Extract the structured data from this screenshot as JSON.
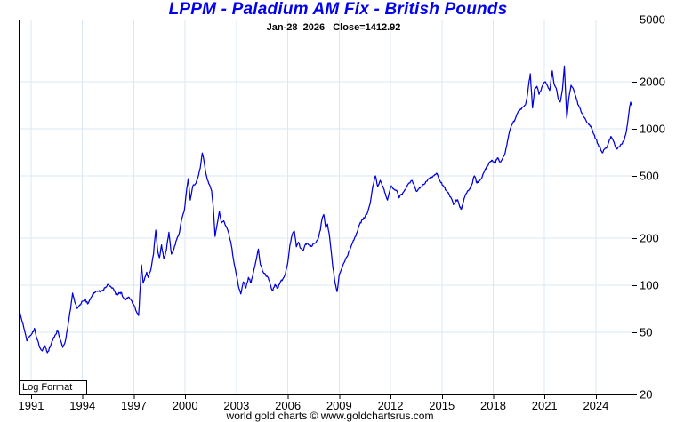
{
  "title": "LPPM - Paladium AM Fix - British Pounds",
  "subtitle": "Jan-28  2026   Close=1412.92",
  "corner_label": "Log Format",
  "footer_credit": "world gold charts © www.goldchartsrus.com",
  "colors": {
    "title": "#0101ef",
    "line": "#0000dd",
    "grid": "#d9e8f6",
    "axis": "#000000",
    "background": "#ffffff"
  },
  "chart_data": {
    "type": "line",
    "title": "LPPM - Paladium AM Fix - British Pounds",
    "y_scale": "log",
    "grid": true,
    "x_ticks": [
      1991,
      1994,
      1997,
      2000,
      2003,
      2006,
      2009,
      2012,
      2015,
      2018,
      2021,
      2024
    ],
    "y_ticks": [
      5000,
      2000,
      1000,
      500,
      200,
      100,
      50,
      20
    ],
    "xlim": [
      1990.27,
      2026.1
    ],
    "ylim": [
      20,
      5000
    ],
    "last_close": 1412.92,
    "last_close_date": "Jan-28 2026",
    "series": [
      {
        "name": "Paladium AM Fix (British Pounds)",
        "points": [
          [
            1990.27,
            72
          ],
          [
            1990.45,
            60
          ],
          [
            1990.6,
            52
          ],
          [
            1990.75,
            44
          ],
          [
            1990.9,
            47
          ],
          [
            1991.05,
            49
          ],
          [
            1991.2,
            53
          ],
          [
            1991.35,
            45
          ],
          [
            1991.5,
            40
          ],
          [
            1991.65,
            38
          ],
          [
            1991.8,
            41
          ],
          [
            1991.95,
            37
          ],
          [
            1992.1,
            40
          ],
          [
            1992.25,
            44
          ],
          [
            1992.4,
            48
          ],
          [
            1992.55,
            51
          ],
          [
            1992.7,
            45
          ],
          [
            1992.85,
            40
          ],
          [
            1993.0,
            44
          ],
          [
            1993.15,
            55
          ],
          [
            1993.3,
            70
          ],
          [
            1993.42,
            89
          ],
          [
            1993.55,
            78
          ],
          [
            1993.7,
            71
          ],
          [
            1993.85,
            75
          ],
          [
            1994.0,
            79
          ],
          [
            1994.15,
            82
          ],
          [
            1994.3,
            76
          ],
          [
            1994.45,
            81
          ],
          [
            1994.6,
            88
          ],
          [
            1994.75,
            90
          ],
          [
            1994.9,
            92
          ],
          [
            1995.05,
            91
          ],
          [
            1995.2,
            93
          ],
          [
            1995.35,
            97
          ],
          [
            1995.5,
            101
          ],
          [
            1995.65,
            98
          ],
          [
            1995.8,
            95
          ],
          [
            1995.95,
            87
          ],
          [
            1996.1,
            88
          ],
          [
            1996.25,
            90
          ],
          [
            1996.4,
            83
          ],
          [
            1996.55,
            81
          ],
          [
            1996.7,
            84
          ],
          [
            1996.85,
            80
          ],
          [
            1997.0,
            75
          ],
          [
            1997.15,
            68
          ],
          [
            1997.28,
            64
          ],
          [
            1997.38,
            100
          ],
          [
            1997.45,
            135
          ],
          [
            1997.55,
            103
          ],
          [
            1997.65,
            112
          ],
          [
            1997.75,
            121
          ],
          [
            1997.85,
            112
          ],
          [
            1998.0,
            126
          ],
          [
            1998.15,
            158
          ],
          [
            1998.28,
            225
          ],
          [
            1998.4,
            165
          ],
          [
            1998.5,
            150
          ],
          [
            1998.62,
            181
          ],
          [
            1998.75,
            148
          ],
          [
            1998.9,
            166
          ],
          [
            1999.05,
            218
          ],
          [
            1999.2,
            158
          ],
          [
            1999.35,
            172
          ],
          [
            1999.5,
            195
          ],
          [
            1999.65,
            214
          ],
          [
            1999.8,
            264
          ],
          [
            1999.95,
            300
          ],
          [
            2000.1,
            420
          ],
          [
            2000.18,
            480
          ],
          [
            2000.3,
            350
          ],
          [
            2000.45,
            430
          ],
          [
            2000.6,
            445
          ],
          [
            2000.75,
            490
          ],
          [
            2000.88,
            560
          ],
          [
            2001.0,
            700
          ],
          [
            2001.08,
            645
          ],
          [
            2001.18,
            545
          ],
          [
            2001.3,
            470
          ],
          [
            2001.42,
            440
          ],
          [
            2001.55,
            400
          ],
          [
            2001.65,
            310
          ],
          [
            2001.75,
            205
          ],
          [
            2001.88,
            248
          ],
          [
            2002.0,
            295
          ],
          [
            2002.12,
            250
          ],
          [
            2002.25,
            258
          ],
          [
            2002.4,
            238
          ],
          [
            2002.55,
            215
          ],
          [
            2002.7,
            180
          ],
          [
            2002.85,
            140
          ],
          [
            2003.0,
            115
          ],
          [
            2003.15,
            95
          ],
          [
            2003.25,
            88
          ],
          [
            2003.4,
            105
          ],
          [
            2003.55,
            96
          ],
          [
            2003.7,
            112
          ],
          [
            2003.85,
            104
          ],
          [
            2004.0,
            122
          ],
          [
            2004.15,
            145
          ],
          [
            2004.28,
            170
          ],
          [
            2004.4,
            135
          ],
          [
            2004.55,
            122
          ],
          [
            2004.7,
            116
          ],
          [
            2004.85,
            112
          ],
          [
            2005.0,
            99
          ],
          [
            2005.12,
            92
          ],
          [
            2005.25,
            101
          ],
          [
            2005.4,
            96
          ],
          [
            2005.55,
            104
          ],
          [
            2005.7,
            109
          ],
          [
            2005.85,
            117
          ],
          [
            2006.0,
            140
          ],
          [
            2006.12,
            180
          ],
          [
            2006.25,
            210
          ],
          [
            2006.38,
            222
          ],
          [
            2006.5,
            176
          ],
          [
            2006.62,
            188
          ],
          [
            2006.75,
            172
          ],
          [
            2006.88,
            166
          ],
          [
            2007.0,
            180
          ],
          [
            2007.15,
            186
          ],
          [
            2007.3,
            176
          ],
          [
            2007.45,
            181
          ],
          [
            2007.6,
            186
          ],
          [
            2007.75,
            196
          ],
          [
            2007.9,
            225
          ],
          [
            2008.0,
            266
          ],
          [
            2008.1,
            283
          ],
          [
            2008.22,
            232
          ],
          [
            2008.32,
            246
          ],
          [
            2008.45,
            200
          ],
          [
            2008.6,
            140
          ],
          [
            2008.75,
            105
          ],
          [
            2008.88,
            91
          ],
          [
            2009.0,
            117
          ],
          [
            2009.15,
            128
          ],
          [
            2009.3,
            140
          ],
          [
            2009.45,
            152
          ],
          [
            2009.6,
            166
          ],
          [
            2009.75,
            183
          ],
          [
            2009.9,
            200
          ],
          [
            2010.05,
            218
          ],
          [
            2010.2,
            246
          ],
          [
            2010.35,
            262
          ],
          [
            2010.5,
            272
          ],
          [
            2010.65,
            290
          ],
          [
            2010.8,
            330
          ],
          [
            2010.92,
            400
          ],
          [
            2011.05,
            470
          ],
          [
            2011.12,
            500
          ],
          [
            2011.25,
            428
          ],
          [
            2011.4,
            468
          ],
          [
            2011.55,
            430
          ],
          [
            2011.7,
            385
          ],
          [
            2011.82,
            350
          ],
          [
            2011.95,
            400
          ],
          [
            2012.05,
            432
          ],
          [
            2012.2,
            412
          ],
          [
            2012.35,
            405
          ],
          [
            2012.5,
            362
          ],
          [
            2012.65,
            382
          ],
          [
            2012.8,
            400
          ],
          [
            2012.95,
            425
          ],
          [
            2013.1,
            450
          ],
          [
            2013.25,
            468
          ],
          [
            2013.4,
            430
          ],
          [
            2013.5,
            400
          ],
          [
            2013.65,
            412
          ],
          [
            2013.8,
            425
          ],
          [
            2013.95,
            440
          ],
          [
            2014.1,
            462
          ],
          [
            2014.25,
            480
          ],
          [
            2014.4,
            492
          ],
          [
            2014.55,
            502
          ],
          [
            2014.68,
            520
          ],
          [
            2014.8,
            490
          ],
          [
            2014.95,
            452
          ],
          [
            2015.1,
            432
          ],
          [
            2015.25,
            405
          ],
          [
            2015.4,
            385
          ],
          [
            2015.55,
            360
          ],
          [
            2015.68,
            327
          ],
          [
            2015.8,
            345
          ],
          [
            2015.92,
            352
          ],
          [
            2016.05,
            315
          ],
          [
            2016.15,
            308
          ],
          [
            2016.3,
            358
          ],
          [
            2016.45,
            388
          ],
          [
            2016.6,
            410
          ],
          [
            2016.75,
            440
          ],
          [
            2016.9,
            500
          ],
          [
            2017.05,
            450
          ],
          [
            2017.2,
            465
          ],
          [
            2017.35,
            490
          ],
          [
            2017.5,
            540
          ],
          [
            2017.65,
            575
          ],
          [
            2017.8,
            612
          ],
          [
            2017.95,
            628
          ],
          [
            2018.1,
            600
          ],
          [
            2018.25,
            652
          ],
          [
            2018.4,
            615
          ],
          [
            2018.55,
            648
          ],
          [
            2018.7,
            700
          ],
          [
            2018.8,
            790
          ],
          [
            2018.9,
            905
          ],
          [
            2019.0,
            1000
          ],
          [
            2019.15,
            1085
          ],
          [
            2019.3,
            1165
          ],
          [
            2019.45,
            1285
          ],
          [
            2019.6,
            1340
          ],
          [
            2019.75,
            1385
          ],
          [
            2019.88,
            1424
          ],
          [
            2020.0,
            1650
          ],
          [
            2020.1,
            2030
          ],
          [
            2020.17,
            2250
          ],
          [
            2020.24,
            1700
          ],
          [
            2020.3,
            1360
          ],
          [
            2020.42,
            1790
          ],
          [
            2020.55,
            1870
          ],
          [
            2020.68,
            1660
          ],
          [
            2020.8,
            1780
          ],
          [
            2020.92,
            1930
          ],
          [
            2021.05,
            2000
          ],
          [
            2021.18,
            1880
          ],
          [
            2021.3,
            1760
          ],
          [
            2021.45,
            2350
          ],
          [
            2021.55,
            1950
          ],
          [
            2021.68,
            1820
          ],
          [
            2021.8,
            1560
          ],
          [
            2021.92,
            1485
          ],
          [
            2022.05,
            1800
          ],
          [
            2022.16,
            2520
          ],
          [
            2022.3,
            1170
          ],
          [
            2022.42,
            1560
          ],
          [
            2022.55,
            1900
          ],
          [
            2022.68,
            1810
          ],
          [
            2022.82,
            1620
          ],
          [
            2022.95,
            1430
          ],
          [
            2023.1,
            1330
          ],
          [
            2023.25,
            1215
          ],
          [
            2023.4,
            1145
          ],
          [
            2023.55,
            1085
          ],
          [
            2023.7,
            1040
          ],
          [
            2023.85,
            935
          ],
          [
            2024.0,
            860
          ],
          [
            2024.12,
            800
          ],
          [
            2024.25,
            758
          ],
          [
            2024.38,
            702
          ],
          [
            2024.5,
            740
          ],
          [
            2024.62,
            752
          ],
          [
            2024.75,
            820
          ],
          [
            2024.88,
            895
          ],
          [
            2024.98,
            860
          ],
          [
            2025.1,
            790
          ],
          [
            2025.22,
            742
          ],
          [
            2025.35,
            768
          ],
          [
            2025.5,
            798
          ],
          [
            2025.65,
            842
          ],
          [
            2025.78,
            960
          ],
          [
            2025.88,
            1150
          ],
          [
            2025.97,
            1380
          ],
          [
            2026.03,
            1480
          ],
          [
            2026.08,
            1412.92
          ]
        ]
      }
    ]
  }
}
